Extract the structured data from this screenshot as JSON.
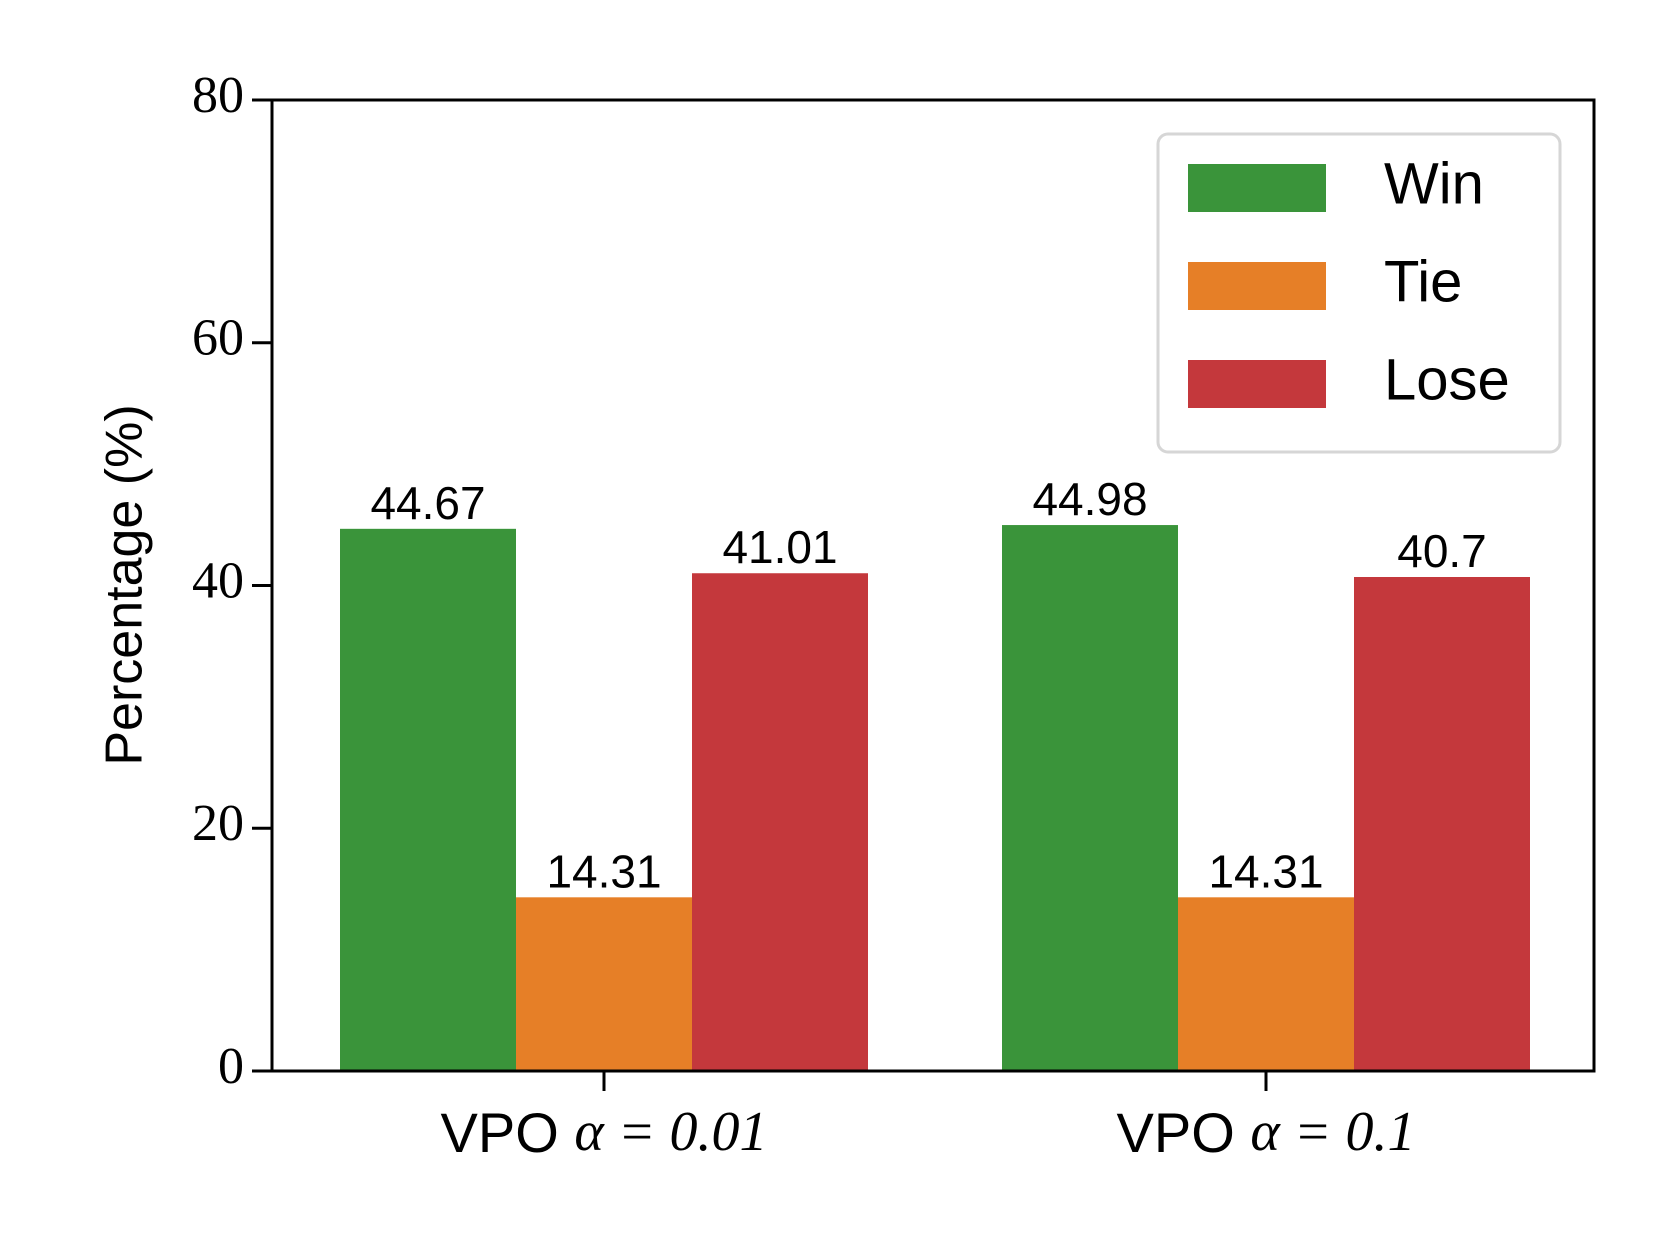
{
  "chart_data": {
    "type": "bar",
    "categories_parts": [
      {
        "prefix": "VPO ",
        "math": "α = 0.01"
      },
      {
        "prefix": "VPO ",
        "math": "α = 0.1"
      }
    ],
    "series": [
      {
        "name": "Win",
        "color": "#3a943a",
        "values": [
          44.67,
          44.98
        ],
        "labels": [
          "44.67",
          "44.98"
        ]
      },
      {
        "name": "Tie",
        "color": "#e67f27",
        "values": [
          14.31,
          14.31
        ],
        "labels": [
          "14.31",
          "14.31"
        ]
      },
      {
        "name": "Lose",
        "color": "#c4383c",
        "values": [
          41.01,
          40.7
        ],
        "labels": [
          "41.01",
          "40.7"
        ]
      }
    ],
    "ylabel": "Percentage (%)",
    "ylim": [
      0,
      80
    ],
    "yticks": [
      0,
      20,
      40,
      60,
      80
    ],
    "legend_position": "top-right",
    "grid": false
  }
}
